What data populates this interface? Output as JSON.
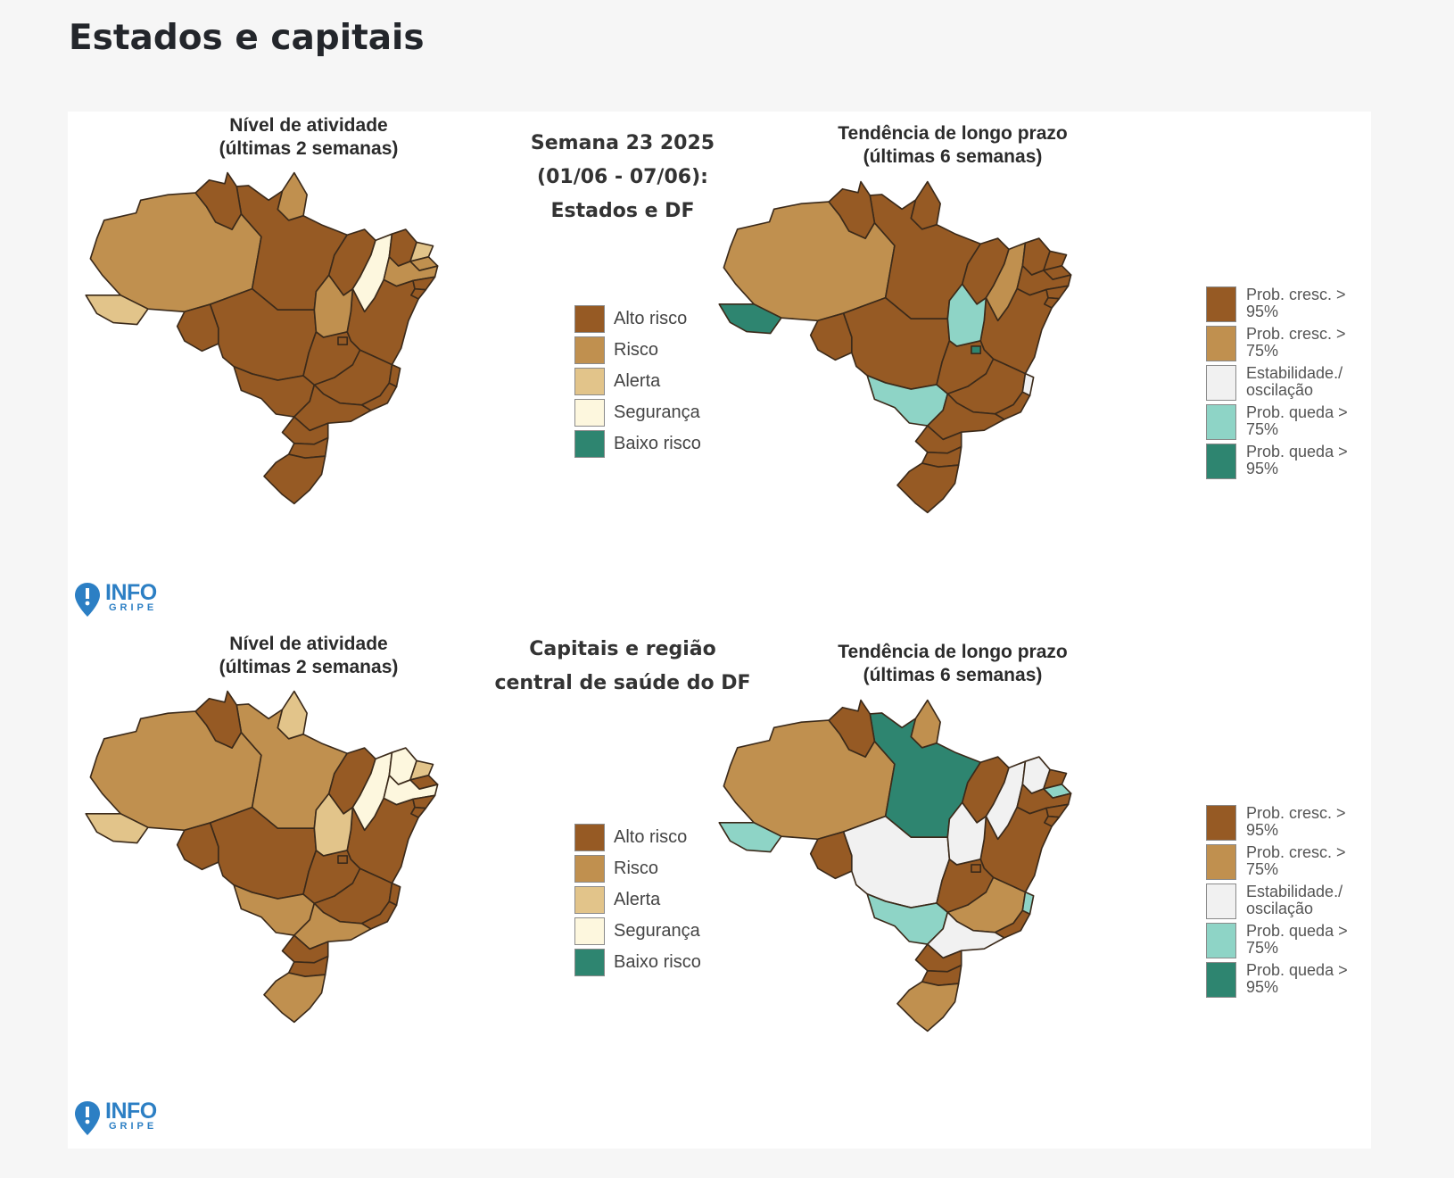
{
  "page": {
    "heading": "Estados e capitais"
  },
  "colors": {
    "alto_risco": "#965a24",
    "risco": "#c0904f",
    "alerta": "#e2c48a",
    "seguranca": "#fdf7de",
    "baixo_risco": "#2e8570",
    "prob_cresc_95": "#965a24",
    "prob_cresc_75": "#c0904f",
    "estabilidade": "#f1f1f1",
    "prob_queda_75": "#8ed4c6",
    "prob_queda_95": "#2e8570"
  },
  "legends": {
    "activity": [
      "Alto risco",
      "Risco",
      "Alerta",
      "Segurança",
      "Baixo risco"
    ],
    "trend": [
      "Prob. cresc. > 95%",
      "Prob. cresc. > 75%",
      "Estabilidade./ oscilação",
      "Prob. queda > 75%",
      "Prob. queda > 95%"
    ]
  },
  "logo": {
    "text": "INFO",
    "sub": "GRIPE"
  },
  "panels": [
    {
      "center_title": [
        "Semana 23 2025",
        "(01/06 - 07/06):",
        "Estados e DF"
      ],
      "activity_map": {
        "title": [
          "Nível de atividade",
          "(últimas 2 semanas)"
        ],
        "regions": {
          "AM": "risco",
          "RR": "alto_risco",
          "AP": "risco",
          "PA": "alto_risco",
          "AC": "alerta",
          "RO": "alto_risco",
          "MT": "alto_risco",
          "TO": "risco",
          "MA": "alto_risco",
          "PI": "seguranca",
          "CE": "alto_risco",
          "RN": "alerta",
          "PB": "risco",
          "PE": "risco",
          "AL": "alto_risco",
          "SE": "alto_risco",
          "BA": "alto_risco",
          "GO": "alto_risco",
          "DF": "alto_risco",
          "MG": "alto_risco",
          "MS": "alto_risco",
          "SP": "alto_risco",
          "RJ": "alto_risco",
          "ES": "alto_risco",
          "PR": "alto_risco",
          "SC": "alto_risco",
          "RS": "alto_risco"
        }
      },
      "trend_map": {
        "title": [
          "Tendência de longo prazo",
          "(últimas 6 semanas)"
        ],
        "regions": {
          "AM": "prob_cresc_75",
          "RR": "prob_cresc_95",
          "AP": "prob_cresc_95",
          "PA": "prob_cresc_95",
          "AC": "prob_queda_95",
          "RO": "prob_cresc_95",
          "MT": "prob_cresc_95",
          "TO": "prob_queda_75",
          "MA": "prob_cresc_95",
          "PI": "prob_cresc_75",
          "CE": "prob_cresc_95",
          "RN": "prob_cresc_95",
          "PB": "prob_cresc_95",
          "PE": "prob_cresc_95",
          "AL": "prob_cresc_95",
          "SE": "prob_cresc_95",
          "BA": "prob_cresc_95",
          "GO": "prob_cresc_95",
          "DF": "prob_queda_95",
          "MG": "prob_cresc_95",
          "MS": "prob_queda_75",
          "SP": "prob_cresc_95",
          "RJ": "prob_cresc_95",
          "ES": "estabilidade",
          "PR": "prob_cresc_95",
          "SC": "prob_cresc_95",
          "RS": "prob_cresc_95"
        }
      }
    },
    {
      "center_title": [
        "Capitais e região",
        "central de saúde do DF"
      ],
      "activity_map": {
        "title": [
          "Nível de atividade",
          "(últimas 2 semanas)"
        ],
        "regions": {
          "AM": "risco",
          "RR": "alto_risco",
          "AP": "alerta",
          "PA": "risco",
          "AC": "alerta",
          "RO": "alto_risco",
          "MT": "alto_risco",
          "TO": "alerta",
          "MA": "alto_risco",
          "PI": "seguranca",
          "CE": "seguranca",
          "RN": "alerta",
          "PB": "alto_risco",
          "PE": "seguranca",
          "AL": "alto_risco",
          "SE": "alto_risco",
          "BA": "alto_risco",
          "GO": "alto_risco",
          "DF": "alto_risco",
          "MG": "alto_risco",
          "MS": "risco",
          "SP": "risco",
          "RJ": "alto_risco",
          "ES": "alto_risco",
          "PR": "alto_risco",
          "SC": "alto_risco",
          "RS": "risco"
        }
      },
      "trend_map": {
        "title": [
          "Tendência de longo prazo",
          "(últimas 6 semanas)"
        ],
        "regions": {
          "AM": "prob_cresc_75",
          "RR": "prob_cresc_95",
          "AP": "prob_cresc_75",
          "PA": "prob_queda_95",
          "AC": "prob_queda_75",
          "RO": "prob_cresc_95",
          "MT": "estabilidade",
          "TO": "estabilidade",
          "MA": "prob_cresc_95",
          "PI": "estabilidade",
          "CE": "estabilidade",
          "RN": "prob_cresc_95",
          "PB": "prob_queda_75",
          "PE": "prob_cresc_95",
          "AL": "prob_cresc_95",
          "SE": "prob_cresc_95",
          "BA": "prob_cresc_95",
          "GO": "prob_cresc_95",
          "DF": "prob_cresc_95",
          "MG": "prob_cresc_75",
          "MS": "prob_queda_75",
          "SP": "estabilidade",
          "RJ": "prob_cresc_95",
          "ES": "prob_queda_75",
          "PR": "prob_cresc_95",
          "SC": "prob_cresc_95",
          "RS": "prob_cresc_75"
        }
      }
    }
  ]
}
